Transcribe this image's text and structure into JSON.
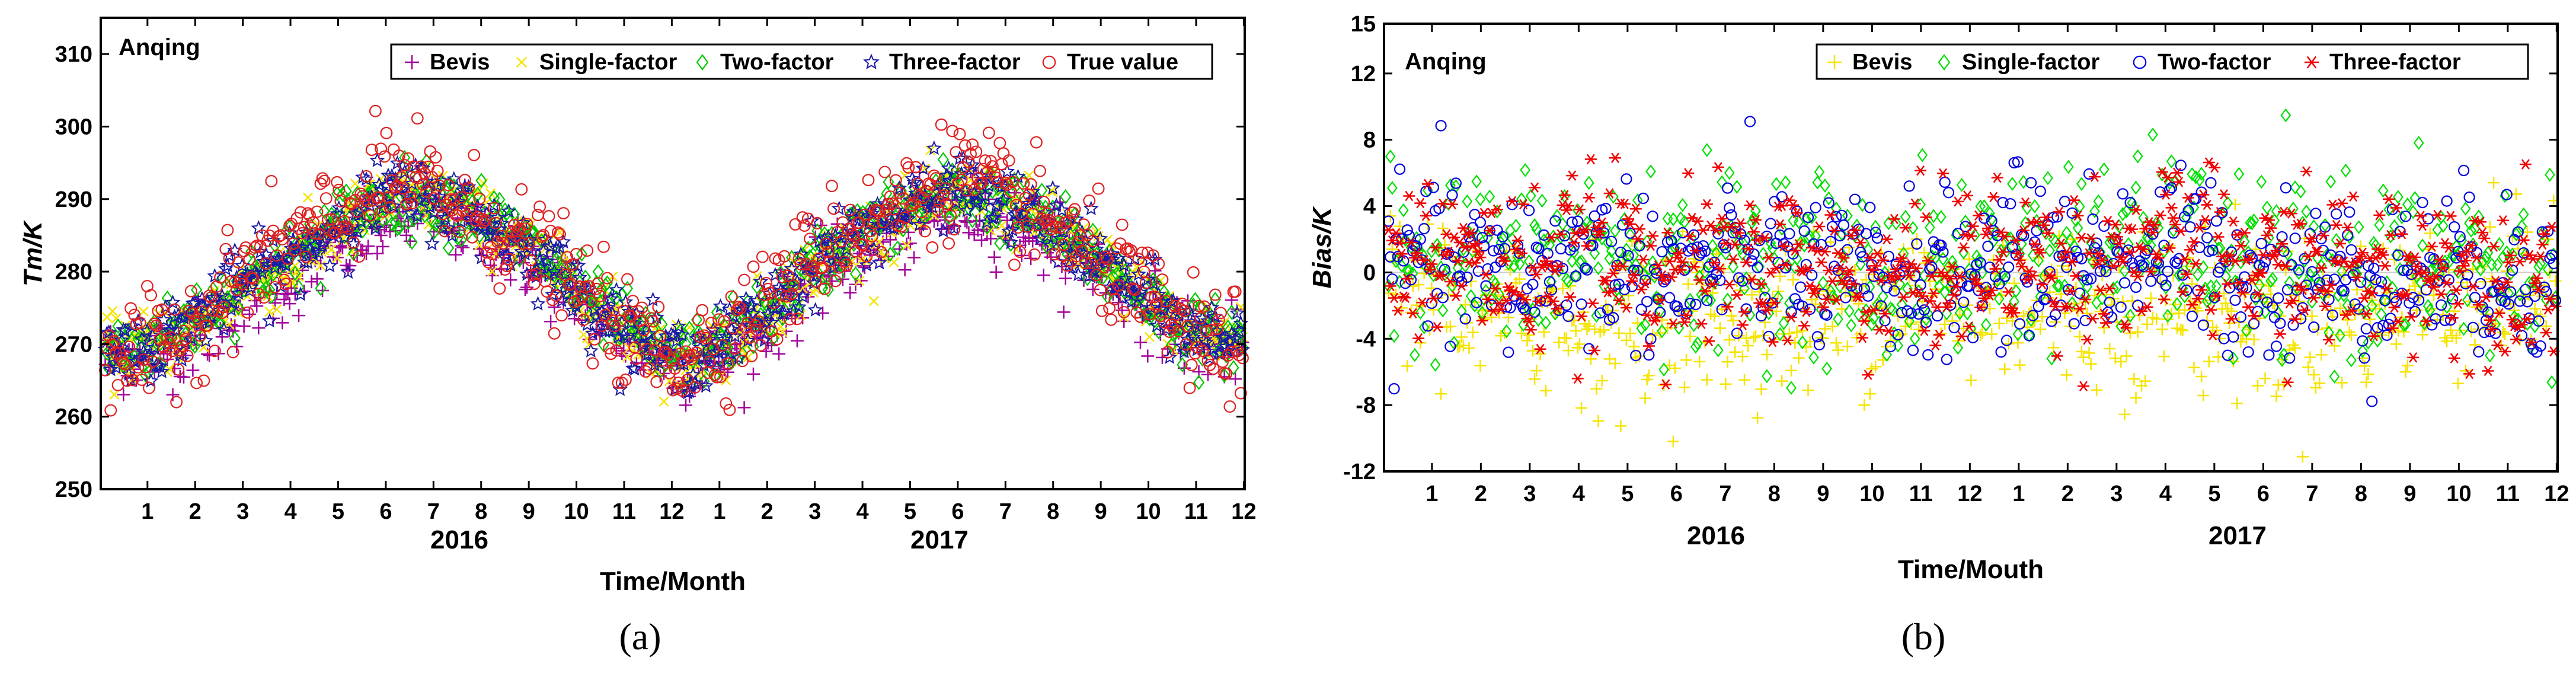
{
  "chart_data": [
    {
      "type": "scatter",
      "panel_title": "Anqing",
      "caption": "(a)",
      "ylabel": "Tm/K",
      "xlabel": "Time/Month",
      "ylim": [
        250,
        315
      ],
      "yticks": [
        250,
        260,
        270,
        280,
        290,
        300,
        310
      ],
      "x_tick_labels": [
        "1",
        "2",
        "3",
        "4",
        "5",
        "6",
        "7",
        "8",
        "9",
        "10",
        "11",
        "12",
        "1",
        "2",
        "3",
        "4",
        "5",
        "6",
        "7",
        "8",
        "9",
        "10",
        "11",
        "12"
      ],
      "year_labels": [
        "2016",
        "2017"
      ],
      "legend": "top-right",
      "series": [
        {
          "name": "Bevis",
          "marker": "+",
          "color": "#a0009a",
          "monthly_values": [
            268,
            269,
            271,
            276,
            279,
            283,
            287,
            288,
            285,
            281,
            276,
            271,
            267,
            268,
            273,
            279,
            283,
            286,
            289,
            287,
            284,
            280,
            275,
            270
          ]
        },
        {
          "name": "Single-factor",
          "marker": "x",
          "color": "#f5e400",
          "monthly_values": [
            269,
            270,
            273,
            278,
            281,
            286,
            290,
            290,
            287,
            283,
            277,
            272,
            268,
            270,
            275,
            281,
            285,
            288,
            291,
            289,
            286,
            281,
            276,
            271
          ]
        },
        {
          "name": "Two-factor",
          "marker": "diamond",
          "color": "#00c800",
          "monthly_values": [
            269,
            270,
            274,
            279,
            282,
            287,
            290,
            290,
            288,
            283,
            277,
            272,
            268,
            270,
            275,
            281,
            286,
            289,
            291,
            289,
            286,
            281,
            276,
            271
          ]
        },
        {
          "name": "Three-factor",
          "marker": "star",
          "color": "#1a1aa6",
          "monthly_values": [
            269,
            270,
            274,
            279,
            282,
            287,
            291,
            290,
            287,
            283,
            277,
            272,
            268,
            270,
            275,
            282,
            286,
            289,
            292,
            289,
            286,
            281,
            276,
            271
          ]
        },
        {
          "name": "True value",
          "marker": "circle",
          "color": "#e02020",
          "monthly_values": [
            270,
            268,
            274,
            280,
            284,
            288,
            293,
            291,
            287,
            283,
            277,
            271,
            268,
            271,
            276,
            283,
            287,
            290,
            294,
            290,
            286,
            281,
            276,
            270
          ]
        }
      ]
    },
    {
      "type": "scatter",
      "panel_title": "Anqing",
      "caption": "(b)",
      "ylabel": "Bias/K",
      "xlabel": "Time/Mouth",
      "ylim": [
        -12,
        15
      ],
      "yticks": [
        -12,
        -8,
        -4,
        0,
        4,
        8,
        12,
        15
      ],
      "x_tick_labels": [
        "1",
        "2",
        "3",
        "4",
        "5",
        "6",
        "7",
        "8",
        "9",
        "10",
        "11",
        "12",
        "1",
        "2",
        "3",
        "4",
        "5",
        "6",
        "7",
        "8",
        "9",
        "10",
        "11",
        "12"
      ],
      "year_labels": [
        "2016",
        "2017"
      ],
      "legend": "top-right",
      "series": [
        {
          "name": "Bevis",
          "marker": "+",
          "color": "#f5e400",
          "monthly_values": [
            -1.5,
            -1.0,
            -2.5,
            -2.5,
            -3.0,
            -3.5,
            -2.0,
            -3.0,
            -3.0,
            -2.5,
            -1.5,
            -1.0,
            -2.0,
            -1.5,
            -2.0,
            -2.5,
            -2.0,
            -2.5,
            -3.0,
            -3.0,
            -2.5,
            -2.0,
            -1.5,
            -1.0
          ]
        },
        {
          "name": "Single-factor",
          "marker": "diamond",
          "color": "#00e000",
          "monthly_values": [
            0.5,
            1.5,
            0.5,
            0.5,
            1.5,
            1.0,
            0.0,
            1.0,
            1.0,
            0.5,
            -0.5,
            0.0,
            0.5,
            1.5,
            1.0,
            1.5,
            2.0,
            1.0,
            0.0,
            0.5,
            0.0,
            0.5,
            0.5,
            0.0
          ]
        },
        {
          "name": "Two-factor",
          "marker": "circle",
          "color": "#0000e0",
          "monthly_values": [
            0.0,
            1.0,
            0.0,
            0.0,
            1.0,
            0.5,
            -0.5,
            0.5,
            0.5,
            0.0,
            -0.5,
            -0.5,
            0.0,
            1.0,
            0.5,
            1.0,
            1.5,
            0.5,
            -0.5,
            0.0,
            -0.5,
            0.0,
            0.0,
            -0.5
          ]
        },
        {
          "name": "Three-factor",
          "marker": "asterisk",
          "color": "#f00000",
          "monthly_values": [
            0.5,
            1.0,
            0.5,
            0.0,
            1.0,
            1.0,
            0.0,
            0.5,
            0.5,
            0.0,
            -0.5,
            0.0,
            0.5,
            1.0,
            0.5,
            1.0,
            1.5,
            1.0,
            0.0,
            0.5,
            0.0,
            0.5,
            0.5,
            0.0
          ]
        }
      ]
    }
  ]
}
